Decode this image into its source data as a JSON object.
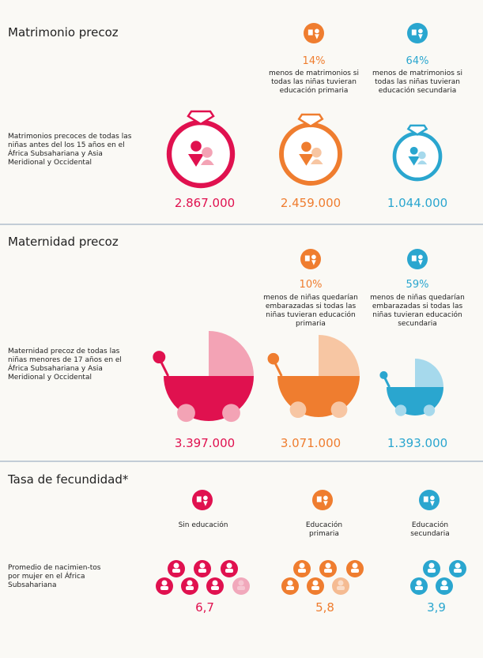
{
  "sections": [
    {
      "title": "Matrimonio precoz",
      "description": "Matrimonios precoces de todas las niñas antes del los 15 años en el África Subsahariana y Asia Meridional y Occidental",
      "items": [
        {
          "value": "2.867.000"
        },
        {
          "percent": "14%",
          "note": "menos de matrimonios si todas las niñas tuvieran educación primaria",
          "value": "2.459.000"
        },
        {
          "percent": "64%",
          "note": "menos de matrimonios si todas las niñas tuvieran educación secundaria",
          "value": "1.044.000"
        }
      ]
    },
    {
      "title": "Maternidad precoz",
      "description": "Maternidad precoz de todas las niñas menores de 17 años en el África Subsahariana y Asia Meridional y Occidental",
      "items": [
        {
          "value": "3.397.000"
        },
        {
          "percent": "10%",
          "note": "menos de niñas quedarían embarazadas si todas las niñas tuvieran educación primaria",
          "value": "3.071.000"
        },
        {
          "percent": "59%",
          "note": "menos de niñas quedarían embarazadas si todas las niñas tuvieran educación secundaria",
          "value": "1.393.000"
        }
      ]
    },
    {
      "title": "Tasa de fecundidad*",
      "description": "Promedio de nacimien-tos por mujer en el África Subsahariana",
      "items": [
        {
          "label": "Sin educación",
          "value": "6,7"
        },
        {
          "label": "Educación primaria",
          "value": "5,8"
        },
        {
          "label": "Educación secundaria",
          "value": "3,9"
        }
      ]
    }
  ]
}
